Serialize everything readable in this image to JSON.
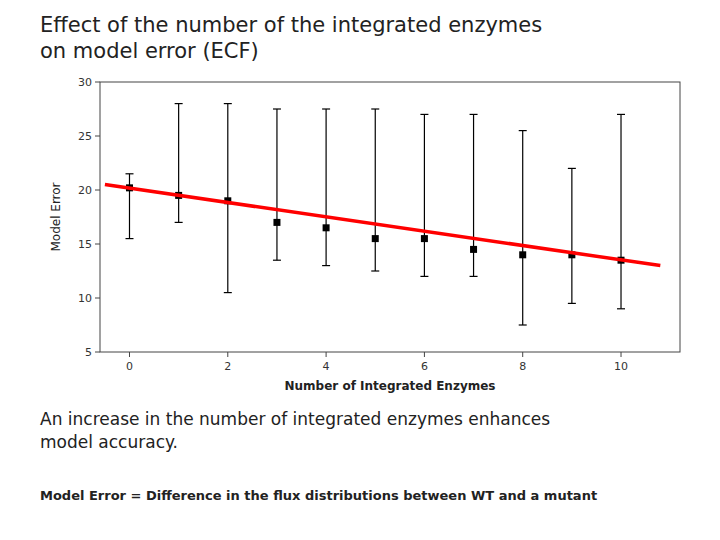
{
  "chart_data": {
    "type": "errorbar",
    "title": "Effect of the number of the integrated enzymes\non model error (ECF)",
    "subtitle": "An increase in the number of integrated enzymes enhances\nmodel accuracy.",
    "annotations": [
      "Model Error = Difference in the flux distributions between WT and a mutant"
    ],
    "x_label": "Number of Integrated Enzymes",
    "y_label": "Model Error",
    "xlim": [
      -0.6,
      11.2
    ],
    "ylim": [
      5,
      30
    ],
    "xticks": [
      0,
      2,
      4,
      6,
      8,
      10
    ],
    "yticks": [
      5,
      10,
      15,
      20,
      25,
      30
    ],
    "grid": false,
    "series": [
      {
        "type": "errorbar",
        "color": "#000000",
        "marker": "square",
        "x": [
          0,
          1,
          2,
          3,
          4,
          5,
          6,
          7,
          8,
          9,
          10
        ],
        "values": [
          20.2,
          19.5,
          19.0,
          17.0,
          16.5,
          15.5,
          15.5,
          14.5,
          14.0,
          14.0,
          13.5
        ],
        "upper": [
          21.5,
          28.0,
          28.0,
          27.5,
          27.5,
          27.5,
          27.0,
          27.0,
          25.5,
          22.0,
          27.0
        ],
        "lower": [
          15.5,
          17.0,
          10.5,
          13.5,
          13.0,
          12.5,
          12.0,
          12.0,
          7.5,
          9.5,
          9.0
        ]
      },
      {
        "type": "line",
        "color": "#ff0000",
        "line_style": "solid",
        "x": [
          -0.5,
          10.8
        ],
        "values": [
          20.5,
          13.0
        ]
      }
    ]
  }
}
